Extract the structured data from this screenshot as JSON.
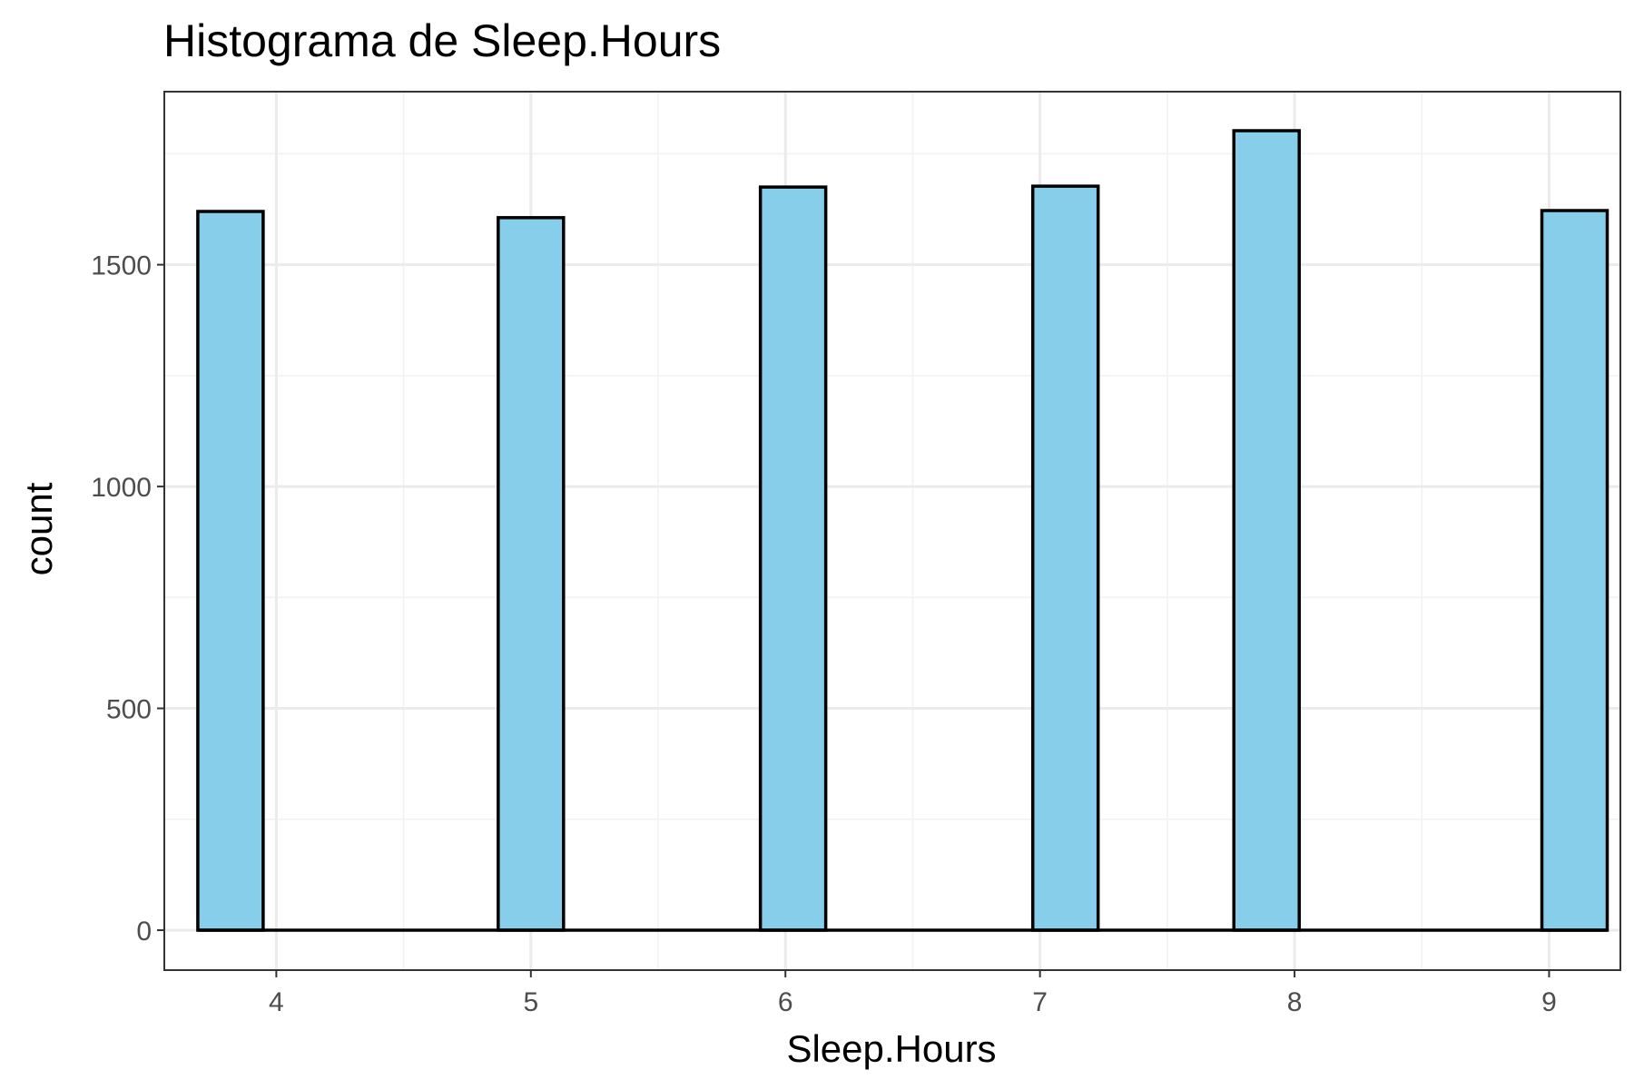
{
  "chart_data": {
    "type": "bar",
    "title": "Histograma de Sleep.Hours",
    "xlabel": "Sleep.Hours",
    "ylabel": "count",
    "categories": [
      "4",
      "5",
      "6",
      "7",
      "8",
      "9"
    ],
    "x": [
      4,
      5,
      6,
      7,
      8,
      9
    ],
    "values": [
      1620,
      1606,
      1675,
      1677,
      1802,
      1622
    ],
    "xlim": [
      3.56,
      9.28
    ],
    "ylim": [
      -90,
      1890
    ],
    "x_ticks": [
      4,
      5,
      6,
      7,
      8,
      9
    ],
    "x_tick_labels": [
      "4",
      "5",
      "6",
      "7",
      "8",
      "9"
    ],
    "y_ticks": [
      0,
      500,
      1000,
      1500
    ],
    "y_tick_labels": [
      "0",
      "500",
      "1000",
      "1500"
    ],
    "bar_fill": "#87ceeb",
    "bar_outline": "#000000",
    "grid": true,
    "legend": "none"
  }
}
